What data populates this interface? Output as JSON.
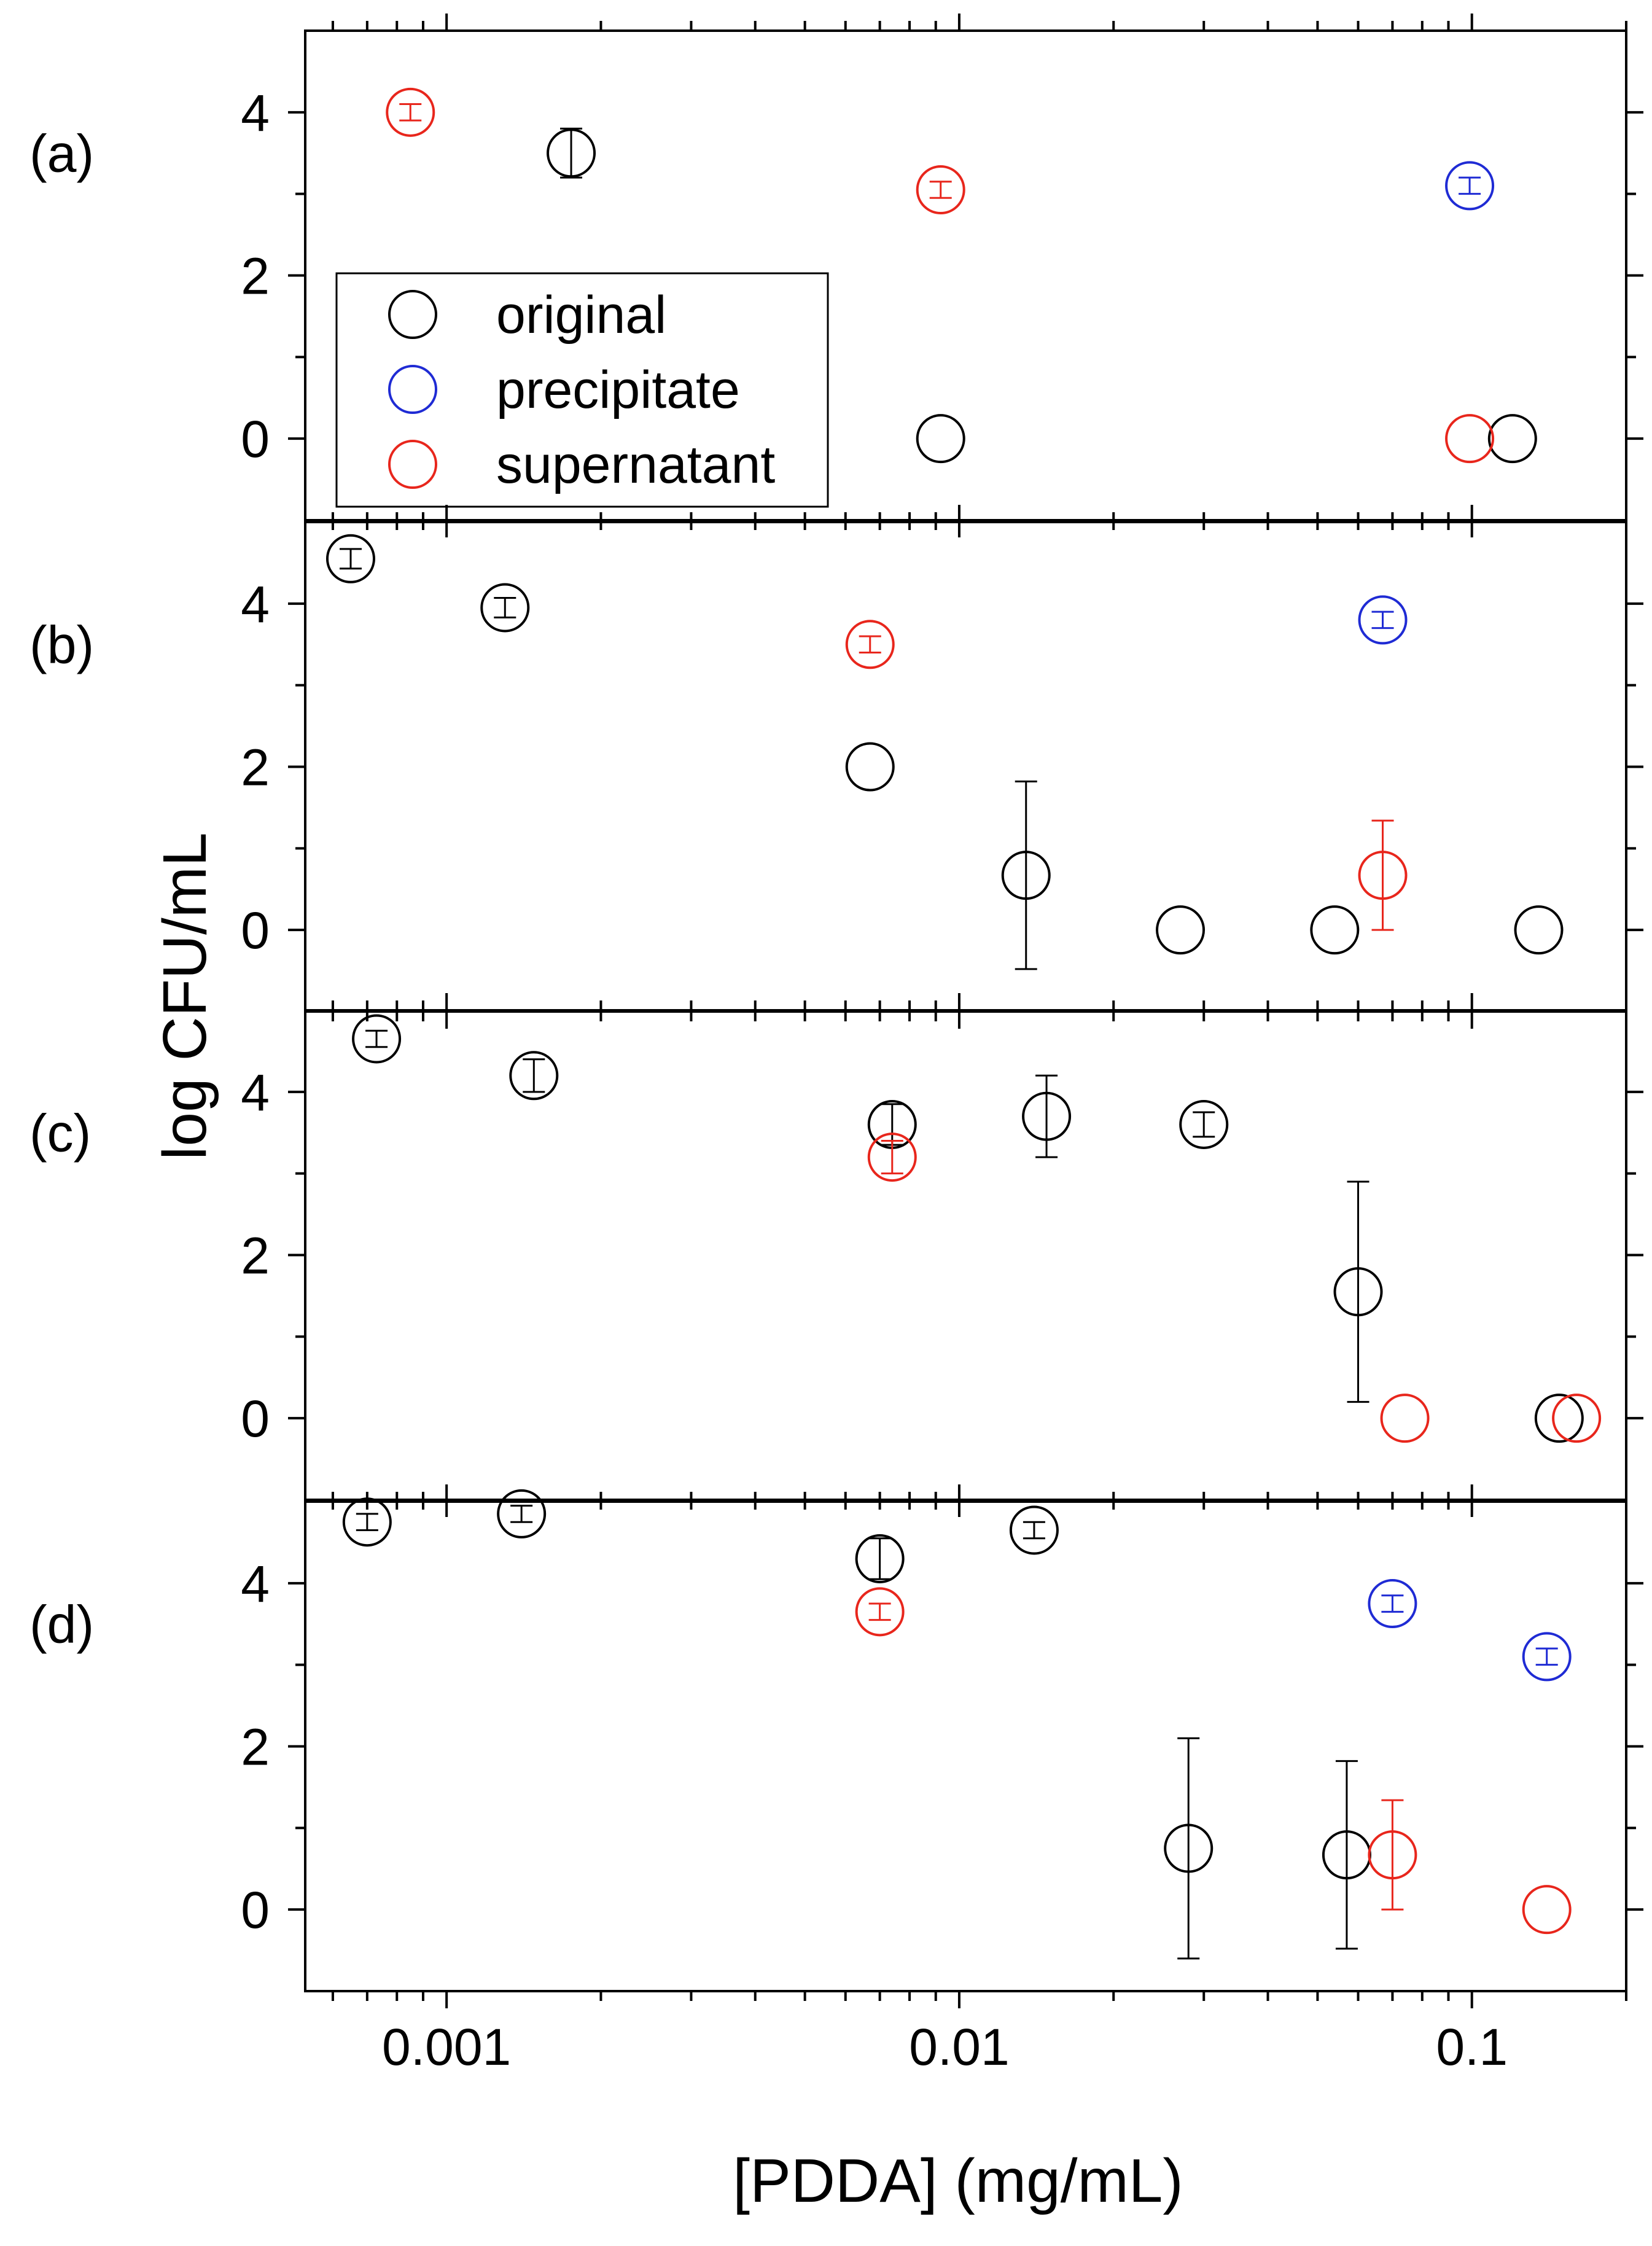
{
  "chart_data": {
    "type": "scatter",
    "xscale": "log",
    "xlim": [
      0.00053,
      0.2
    ],
    "ylim": [
      -1.0,
      5.0
    ],
    "xlabel": "[PDDA] (mg/mL)",
    "ylabel": "log CFU/mL",
    "x_ticks": [
      0.001,
      0.01,
      0.1
    ],
    "x_tick_labels": [
      "0.001",
      "0.01",
      "0.1"
    ],
    "y_ticks": [
      0,
      2,
      4
    ],
    "y_tick_labels": [
      "0",
      "2",
      "4"
    ],
    "colors": {
      "original": "#000000",
      "precipitate": "#1f2bd4",
      "supernatant": "#e8261c"
    },
    "legend": {
      "placement": "lower-left of panel (a)",
      "entries": [
        {
          "key": "original",
          "label": "original"
        },
        {
          "key": "precipitate",
          "label": "precipitate"
        },
        {
          "key": "supernatant",
          "label": "supernatant"
        }
      ]
    },
    "panels": [
      {
        "label": "(a)",
        "series": [
          {
            "name": "original",
            "points": [
              [
                0.00175,
                3.5,
                0.3
              ],
              [
                0.0092,
                0.0,
                0
              ],
              [
                0.12,
                0.0,
                0
              ]
            ]
          },
          {
            "name": "precipitate",
            "points": [
              [
                0.099,
                3.1,
                0.1
              ]
            ]
          },
          {
            "name": "supernatant",
            "points": [
              [
                0.00085,
                4.0,
                0.1
              ],
              [
                0.0092,
                3.05,
                0.1
              ],
              [
                0.099,
                0.0,
                0
              ]
            ]
          }
        ]
      },
      {
        "label": "(b)",
        "series": [
          {
            "name": "original",
            "points": [
              [
                0.00065,
                4.55,
                0.12
              ],
              [
                0.0013,
                3.95,
                0.12
              ],
              [
                0.0067,
                2.0,
                0
              ],
              [
                0.0135,
                0.67,
                1.15
              ],
              [
                0.027,
                0.0,
                0
              ],
              [
                0.054,
                0.0,
                0
              ],
              [
                0.135,
                0.0,
                0
              ]
            ]
          },
          {
            "name": "precipitate",
            "points": [
              [
                0.067,
                3.8,
                0.1
              ]
            ]
          },
          {
            "name": "supernatant",
            "points": [
              [
                0.0067,
                3.5,
                0.1
              ],
              [
                0.067,
                0.67,
                0.67
              ]
            ]
          }
        ]
      },
      {
        "label": "(c)",
        "series": [
          {
            "name": "original",
            "points": [
              [
                0.00073,
                4.65,
                0.1
              ],
              [
                0.00148,
                4.2,
                0.2
              ],
              [
                0.0074,
                3.6,
                0.25
              ],
              [
                0.0148,
                3.7,
                0.5
              ],
              [
                0.03,
                3.6,
                0.15
              ],
              [
                0.06,
                1.55,
                1.35
              ],
              [
                0.148,
                0.0,
                0
              ]
            ]
          },
          {
            "name": "supernatant",
            "points": [
              [
                0.0074,
                3.2,
                0.2
              ],
              [
                0.074,
                0.0,
                0
              ],
              [
                0.16,
                0.0,
                0
              ]
            ]
          }
        ]
      },
      {
        "label": "(d)",
        "series": [
          {
            "name": "original",
            "points": [
              [
                0.0007,
                4.75,
                0.1
              ],
              [
                0.0014,
                4.85,
                0.1
              ],
              [
                0.007,
                4.3,
                0.25
              ],
              [
                0.014,
                4.65,
                0.1
              ],
              [
                0.028,
                0.75,
                1.35
              ],
              [
                0.057,
                0.67,
                1.15
              ]
            ]
          },
          {
            "name": "precipitate",
            "points": [
              [
                0.07,
                3.75,
                0.1
              ],
              [
                0.14,
                3.1,
                0.1
              ]
            ]
          },
          {
            "name": "supernatant",
            "points": [
              [
                0.007,
                3.65,
                0.1
              ],
              [
                0.07,
                0.67,
                0.67
              ],
              [
                0.14,
                0.0,
                0
              ]
            ]
          }
        ]
      }
    ]
  }
}
